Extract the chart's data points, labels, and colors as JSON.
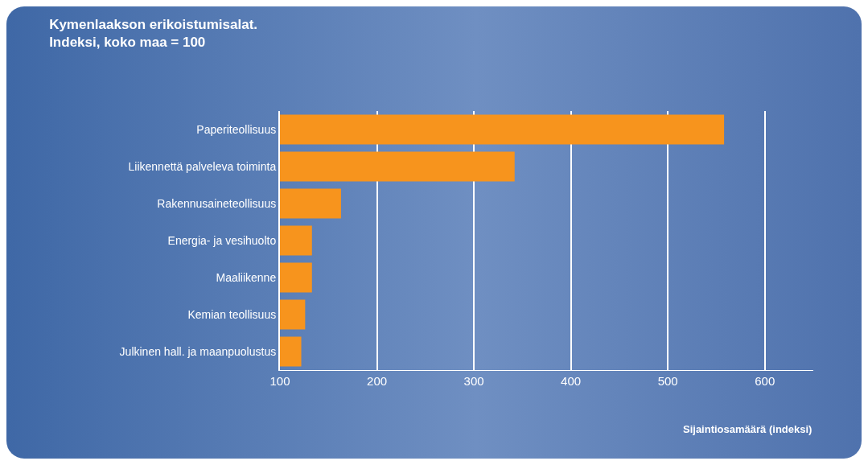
{
  "chart_data": {
    "type": "bar",
    "orientation": "horizontal",
    "title": "Kymenlaakson erikoistumisalat.\nIndeksi, koko maa = 100",
    "categories": [
      "Paperiteollisuus",
      "Liikennettä palveleva toiminta",
      "Rakennusaineteollisuus",
      "Energia- ja vesihuolto",
      "Maaliikenne",
      "Kemian teollisuus",
      "Julkinen hall. ja maanpuolustus"
    ],
    "values": [
      558,
      342,
      163,
      133,
      133,
      126,
      122
    ],
    "color": "#f7941d",
    "xlabel": "Sijaintiosamäärä (indeksi)",
    "xlim": [
      100,
      650
    ],
    "xticks": [
      100,
      200,
      300,
      400,
      500,
      600
    ],
    "grid": "x"
  }
}
